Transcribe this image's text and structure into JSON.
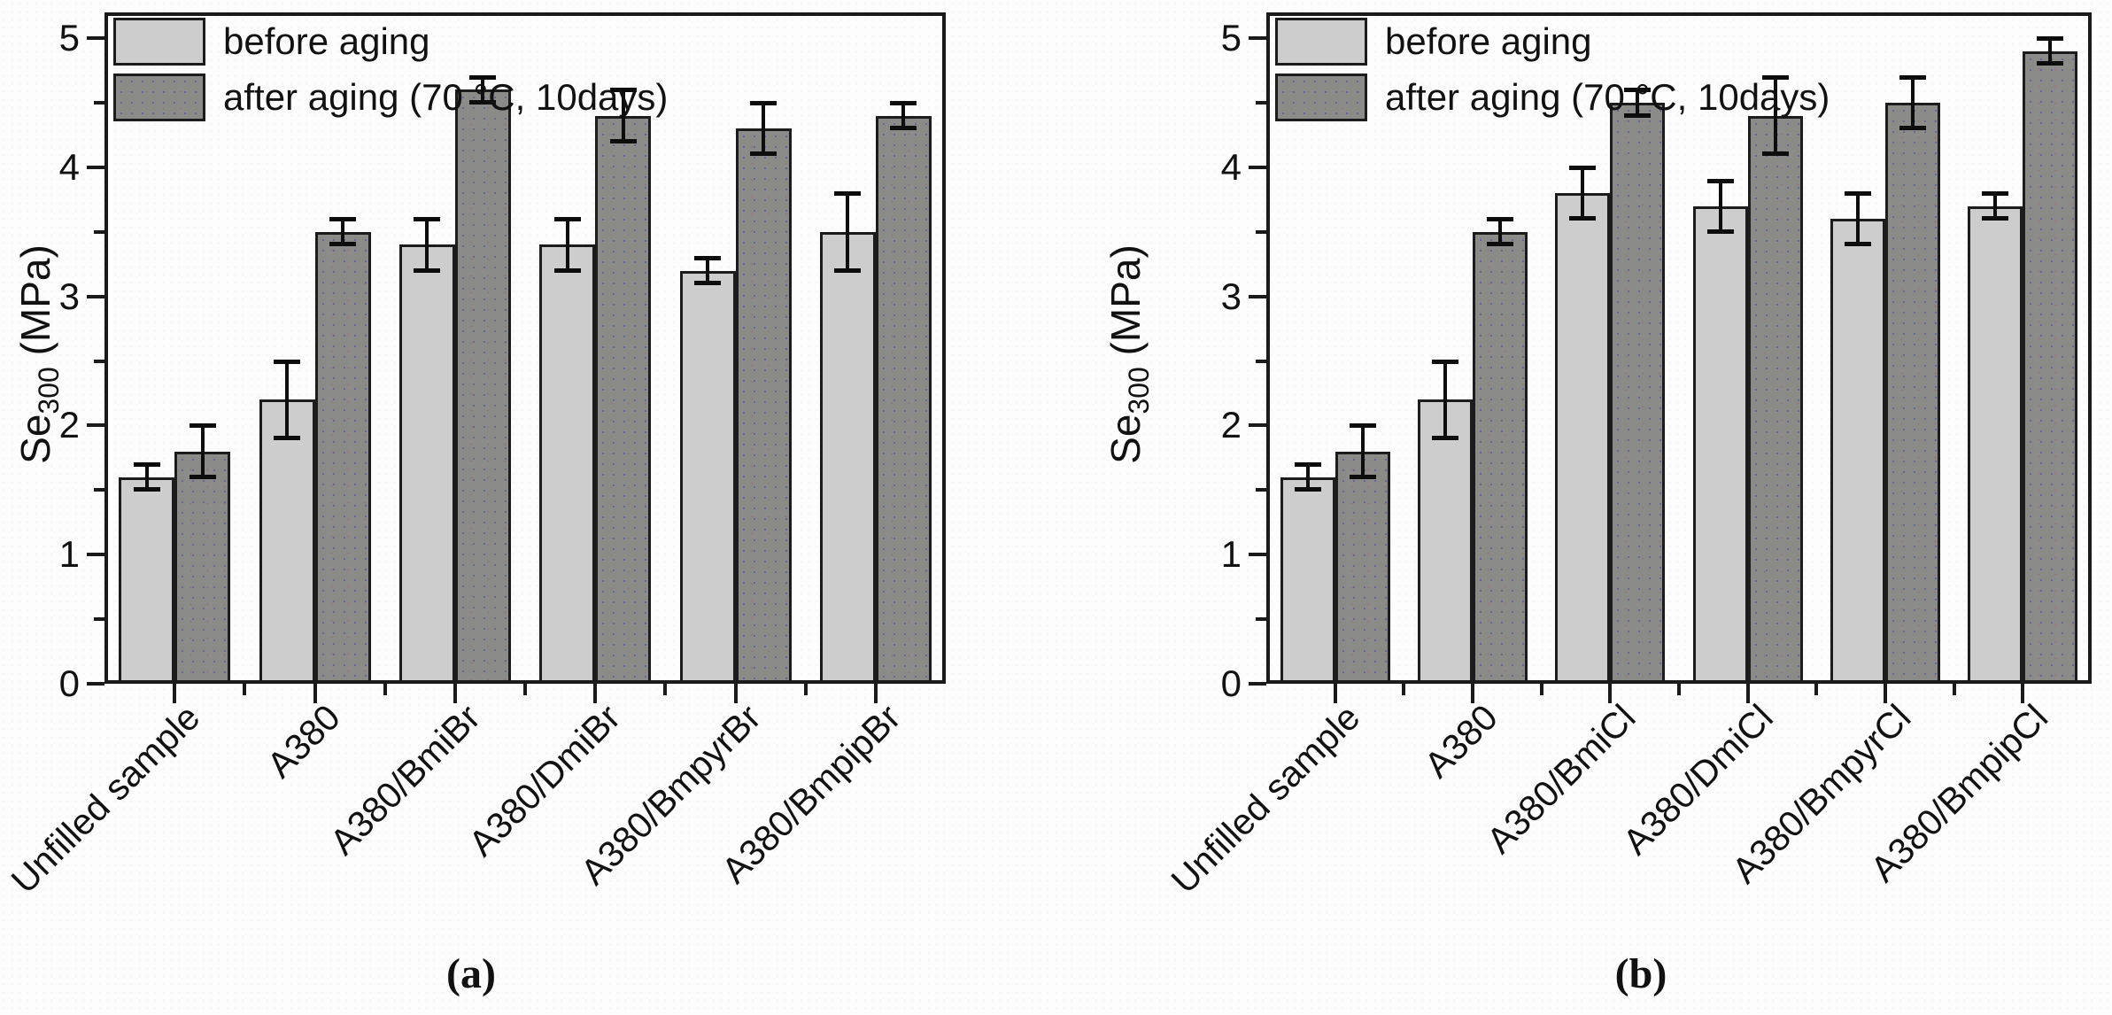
{
  "chart_data": [
    {
      "id": "a",
      "type": "bar",
      "caption": "(a)",
      "ylabel": {
        "base": "Se",
        "sub": "300",
        "unit": " (MPa)"
      },
      "ylabel_text": "Se300 (MPa)",
      "ylim": [
        0,
        5.2
      ],
      "yticks": [
        0,
        1,
        2,
        3,
        4,
        5
      ],
      "minor_tick_step": 0.5,
      "grid": false,
      "legend_position": "top-left",
      "categories": [
        "Unfilled sample",
        "A380",
        "A380/BmiBr",
        "A380/DmiBr",
        "A380/BmpyrBr",
        "A380/BmpipBr"
      ],
      "series": [
        {
          "name": "before aging",
          "color": "#cdcdcd",
          "values": [
            1.6,
            2.2,
            3.4,
            3.4,
            3.2,
            3.5
          ],
          "errors": [
            0.1,
            0.3,
            0.2,
            0.2,
            0.1,
            0.3
          ]
        },
        {
          "name": "after aging (70 °C, 10days)",
          "color": "#8b8b89",
          "values": [
            1.8,
            3.5,
            4.6,
            4.4,
            4.3,
            4.4
          ],
          "errors": [
            0.2,
            0.1,
            0.1,
            0.2,
            0.2,
            0.1
          ]
        }
      ]
    },
    {
      "id": "b",
      "type": "bar",
      "caption": "(b)",
      "ylabel": {
        "base": "Se",
        "sub": "300",
        "unit": " (MPa)"
      },
      "ylabel_text": "Se300 (MPa)",
      "ylim": [
        0,
        5.2
      ],
      "yticks": [
        0,
        1,
        2,
        3,
        4,
        5
      ],
      "minor_tick_step": 0.5,
      "grid": false,
      "legend_position": "top-left",
      "categories": [
        "Unfilled sample",
        "A380",
        "A380/BmiCl",
        "A380/DmiCl",
        "A380/BmpyrCl",
        "A380/BmpipCl"
      ],
      "series": [
        {
          "name": "before aging",
          "color": "#cdcdcd",
          "values": [
            1.6,
            2.2,
            3.8,
            3.7,
            3.6,
            3.7
          ],
          "errors": [
            0.1,
            0.3,
            0.2,
            0.2,
            0.2,
            0.1
          ]
        },
        {
          "name": "after aging (70 °C, 10days)",
          "color": "#8b8b89",
          "values": [
            1.8,
            3.5,
            4.5,
            4.4,
            4.5,
            4.9
          ],
          "errors": [
            0.2,
            0.1,
            0.1,
            0.3,
            0.2,
            0.1
          ]
        }
      ]
    }
  ]
}
